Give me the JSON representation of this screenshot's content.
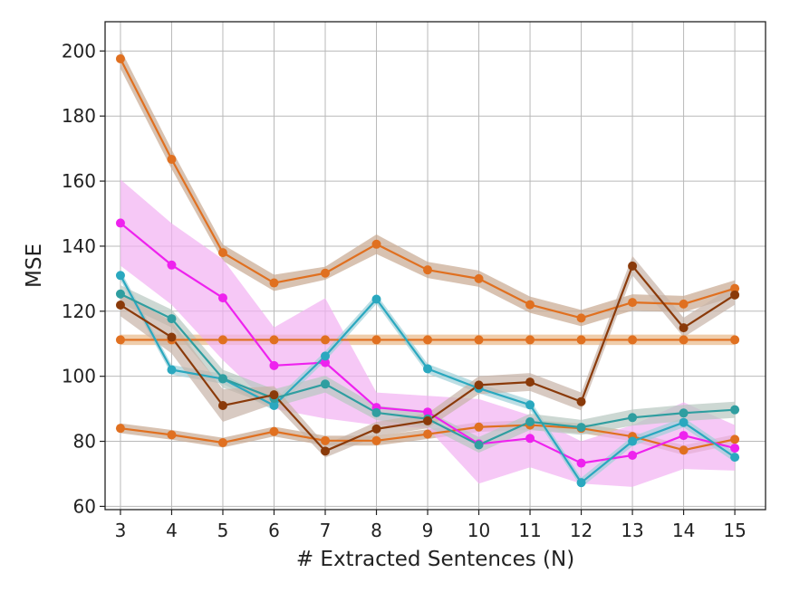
{
  "chart_data": {
    "type": "line",
    "xlabel": "# Extracted Sentences (N)",
    "ylabel": "MSE",
    "x": [
      3,
      4,
      5,
      6,
      7,
      8,
      9,
      10,
      11,
      12,
      13,
      14,
      15
    ],
    "xlim": [
      2.7,
      15.6
    ],
    "ylim": [
      59,
      209
    ],
    "yticks": [
      60,
      80,
      100,
      120,
      140,
      160,
      180,
      200
    ],
    "grid": true,
    "legend": "none",
    "series": [
      {
        "color": "#e07020",
        "band": "#c8a890",
        "values": [
          197.6,
          166.7,
          138.0,
          128.7,
          131.7,
          140.6,
          132.7,
          130.0,
          122.0,
          117.9,
          122.7,
          122.2,
          127.0
        ],
        "lower": [
          194.6,
          163.7,
          135.5,
          126.2,
          129.7,
          137.6,
          130.2,
          127.5,
          119.5,
          115.4,
          120.2,
          119.7,
          124.5
        ],
        "upper": [
          200.6,
          169.7,
          140.5,
          131.2,
          133.7,
          143.6,
          135.2,
          132.5,
          124.5,
          120.4,
          125.2,
          124.7,
          129.5
        ]
      },
      {
        "color": "#e07020",
        "band": "#e8b888",
        "values": [
          111.2,
          111.2,
          111.2,
          111.2,
          111.2,
          111.2,
          111.2,
          111.2,
          111.2,
          111.2,
          111.2,
          111.2,
          111.2
        ],
        "lower": [
          109.6,
          109.6,
          109.6,
          109.6,
          109.6,
          109.6,
          109.6,
          109.6,
          109.6,
          109.6,
          109.6,
          109.6,
          109.6
        ],
        "upper": [
          112.8,
          112.8,
          112.8,
          112.8,
          112.8,
          112.8,
          112.8,
          112.8,
          112.8,
          112.8,
          112.8,
          112.8,
          112.8
        ]
      },
      {
        "color": "#e07020",
        "band": "#c8a890",
        "values": [
          84.0,
          82.0,
          79.6,
          83.0,
          80.2,
          80.2,
          82.2,
          84.4,
          85.0,
          84.0,
          81.5,
          77.3,
          80.6
        ],
        "lower": [
          82.5,
          80.5,
          78.1,
          81.5,
          78.7,
          78.7,
          80.7,
          82.9,
          83.5,
          82.5,
          80.0,
          75.8,
          79.1
        ],
        "upper": [
          85.5,
          83.5,
          81.1,
          84.5,
          81.7,
          81.7,
          83.7,
          85.9,
          86.5,
          85.5,
          83.0,
          78.8,
          82.1
        ]
      },
      {
        "color": "#ee22ee",
        "band": "#f2b0f2",
        "values": [
          147.1,
          134.2,
          124.1,
          103.3,
          104.2,
          90.4,
          89.0,
          79.2,
          80.9,
          73.3,
          75.7,
          81.8,
          77.9
        ],
        "lower": [
          134.0,
          122.0,
          105.0,
          90.0,
          87.0,
          85.0,
          84.0,
          67.0,
          72.0,
          67.0,
          66.0,
          71.5,
          71.0
        ],
        "upper": [
          160.5,
          147.0,
          136.0,
          115.0,
          124.0,
          95.0,
          94.0,
          93.0,
          88.0,
          80.0,
          85.0,
          92.0,
          85.0
        ]
      },
      {
        "color": "#2aa8bf",
        "band": "#a0d0d8",
        "values": [
          131.0,
          102.0,
          99.2,
          91.0,
          106.2,
          123.7,
          102.3,
          96.3,
          91.2,
          67.3,
          80.0,
          85.8,
          75.1
        ],
        "lower": [
          129.5,
          100.5,
          97.7,
          89.5,
          104.7,
          122.2,
          100.8,
          94.8,
          89.7,
          65.8,
          78.5,
          84.3,
          73.6
        ],
        "upper": [
          132.5,
          103.5,
          100.7,
          92.5,
          107.7,
          125.2,
          103.8,
          97.8,
          92.7,
          68.8,
          81.5,
          87.3,
          76.6
        ]
      },
      {
        "color": "#2f9ea0",
        "band": "#b8c8c0",
        "values": [
          125.3,
          117.7,
          99.3,
          93.2,
          97.6,
          88.8,
          86.9,
          78.9,
          86.0,
          84.3,
          87.3,
          88.7,
          89.7
        ],
        "lower": [
          122.5,
          115.0,
          96.5,
          90.5,
          95.0,
          86.5,
          84.5,
          76.5,
          83.5,
          82.0,
          84.8,
          86.2,
          87.2
        ],
        "upper": [
          128.0,
          120.5,
          102.0,
          96.0,
          100.2,
          91.0,
          89.3,
          81.3,
          88.5,
          86.6,
          89.8,
          91.2,
          92.2
        ]
      },
      {
        "color": "#8a3a0a",
        "band": "#c8b4a8",
        "values": [
          121.9,
          112.0,
          91.0,
          94.3,
          77.0,
          83.8,
          86.3,
          97.3,
          98.2,
          92.2,
          133.9,
          114.9,
          125.0
        ],
        "lower": [
          118.5,
          107.0,
          86.0,
          91.5,
          75.0,
          81.5,
          84.0,
          94.5,
          95.5,
          89.5,
          131.0,
          112.0,
          122.0
        ],
        "upper": [
          125.5,
          117.0,
          96.0,
          97.0,
          79.0,
          86.0,
          88.6,
          100.0,
          101.0,
          95.0,
          137.0,
          118.0,
          128.0
        ]
      }
    ]
  }
}
